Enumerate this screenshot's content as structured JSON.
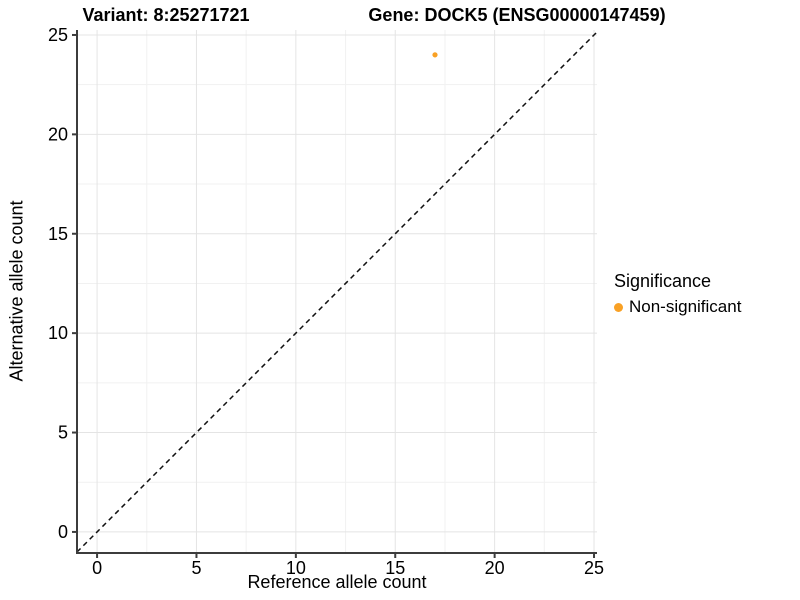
{
  "titles": {
    "variant": "Variant: 8:25271721",
    "gene": "Gene: DOCK5 (ENSG00000147459)"
  },
  "axes": {
    "x_label": "Reference allele count",
    "y_label": "Alternative allele count"
  },
  "legend": {
    "title": "Significance",
    "items": [
      {
        "label": "Non-significant",
        "color": "#F9A125"
      }
    ]
  },
  "colors": {
    "point_orange": "#F9A125",
    "axis_line": "#3c3c3c",
    "grid_major": "#e4e4e4",
    "grid_minor": "#f1f1f1",
    "reference_line": "#111111",
    "background": "#ffffff"
  },
  "chart_data": {
    "type": "scatter",
    "title": "Variant: 8:25271721  |  Gene: DOCK5 (ENSG00000147459)",
    "xlabel": "Reference allele count",
    "ylabel": "Alternative allele count",
    "xlim": [
      -1.01,
      25.15
    ],
    "ylim": [
      -1.06,
      25.25
    ],
    "x_ticks": [
      0,
      5,
      10,
      15,
      20,
      25
    ],
    "y_ticks": [
      0,
      5,
      10,
      15,
      20,
      25
    ],
    "x_minor_ticks": [
      2.5,
      7.5,
      12.5,
      17.5,
      22.5
    ],
    "y_minor_ticks": [
      2.5,
      7.5,
      12.5,
      17.5,
      22.5
    ],
    "grid": true,
    "legend_position": "right",
    "series": [
      {
        "name": "Non-significant",
        "color": "#F9A125",
        "points": [
          {
            "x": 17,
            "y": 24
          }
        ]
      }
    ],
    "reference_line": {
      "type": "identity",
      "equation": "y = x",
      "style": "dashed",
      "color": "#111111"
    }
  }
}
